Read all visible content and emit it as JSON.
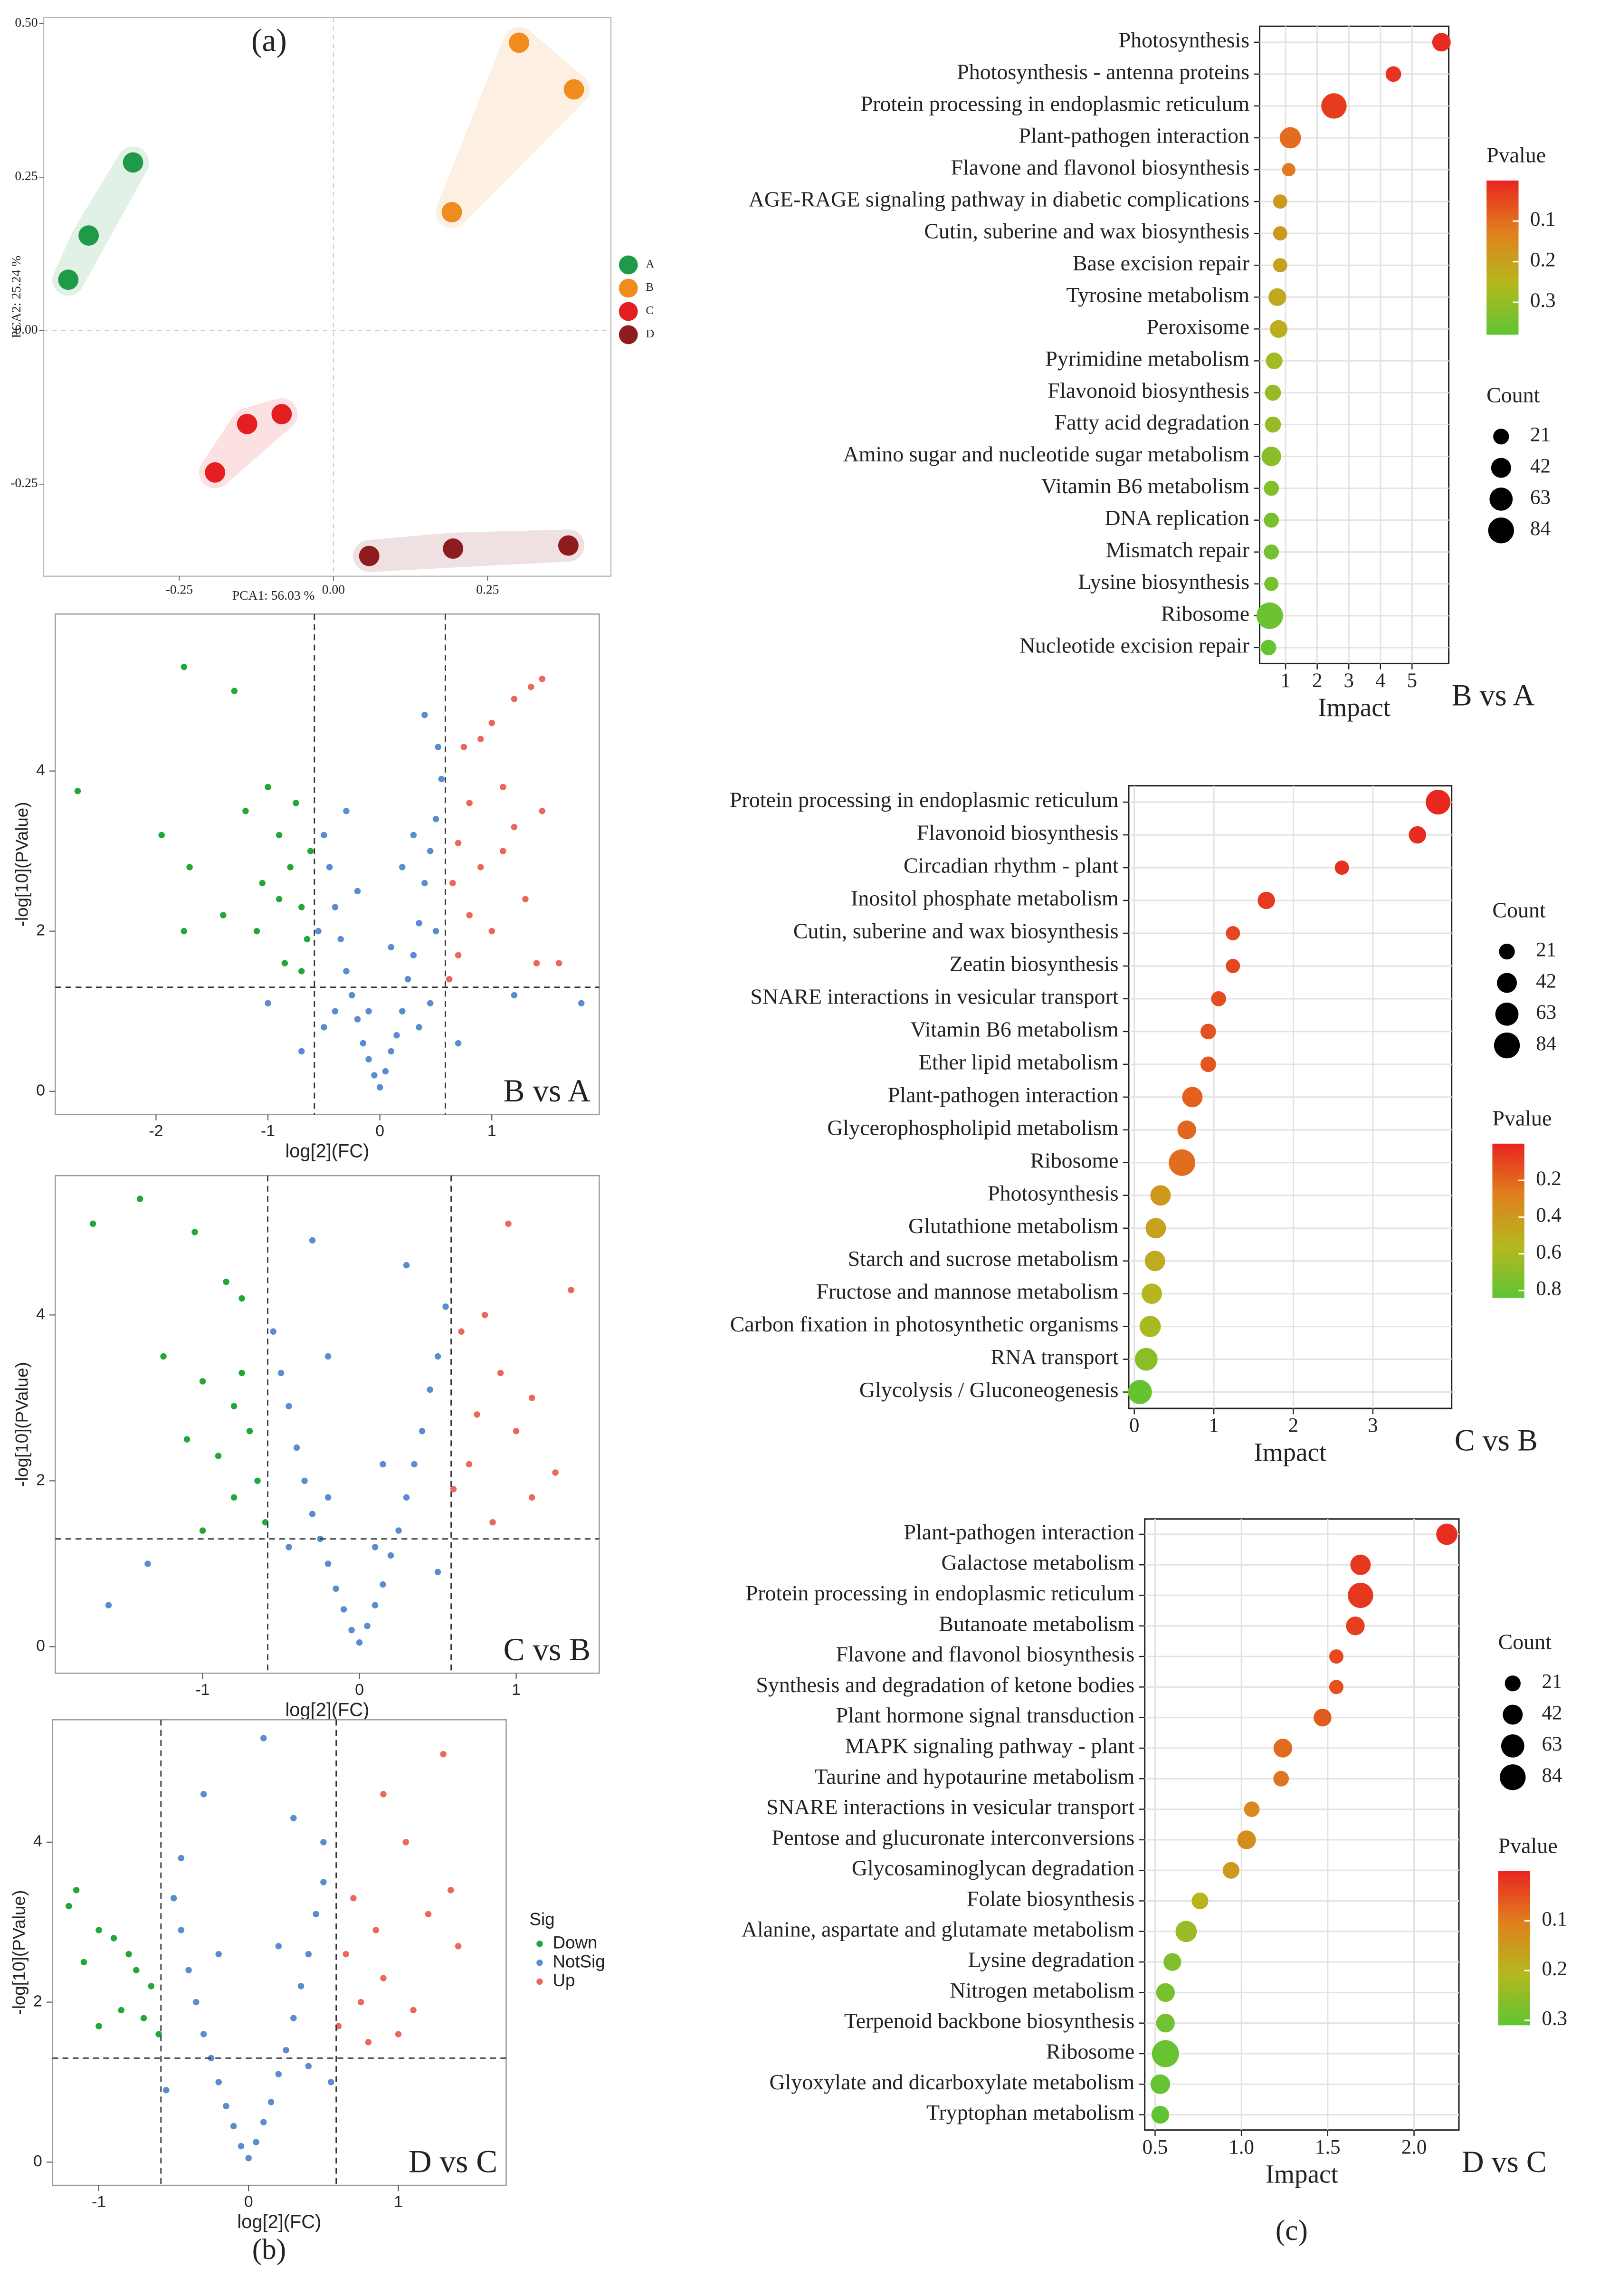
{
  "chart_data": [
    {
      "type": "scatter",
      "title": "(a)",
      "xlabel": "PCA1: 56.03 %",
      "ylabel": "PCA2: 25.24 %",
      "xlim": [
        -0.47,
        0.45
      ],
      "xticks": [
        -0.25,
        {
          "value": 0,
          "label": "0.00"
        },
        0.25
      ],
      "ylim": [
        -0.4,
        0.51
      ],
      "yticks": [
        -0.25,
        {
          "value": 0,
          "label": "0.00"
        },
        0.25,
        {
          "value": 0.5,
          "label": "0.50"
        }
      ],
      "series": [
        {
          "name": "A",
          "color": "#1f9a48",
          "x": [
            -0.325,
            -0.397,
            -0.43
          ],
          "values": [
            0.274,
            0.155,
            0.083
          ]
        },
        {
          "name": "B",
          "color": "#f08c1e",
          "x": [
            0.301,
            0.39,
            0.192
          ],
          "values": [
            0.469,
            0.393,
            0.193
          ]
        },
        {
          "name": "C",
          "color": "#e51f1f",
          "x": [
            -0.14,
            -0.084,
            -0.192
          ],
          "values": [
            -0.152,
            -0.136,
            -0.231
          ]
        },
        {
          "name": "D",
          "color": "#8e1b1e",
          "x": [
            0.058,
            0.194,
            0.381
          ],
          "values": [
            -0.367,
            -0.355,
            -0.35
          ]
        }
      ]
    },
    {
      "type": "volcano",
      "label": "B vs A",
      "xlabel": "log[2](FC)",
      "ylabel": "-log[10](PValue)",
      "xlim": [
        -2.9,
        1.96
      ],
      "xticks": [
        -2,
        -1,
        0,
        1
      ],
      "ylim": [
        -0.29,
        5.96
      ],
      "yticks": [
        0,
        2,
        4
      ],
      "vlines": [
        -0.585,
        0.585
      ],
      "hline": 1.3,
      "series": [
        {
          "name": "Down",
          "color": "#22a83a",
          "x": [
            -2.7,
            -1.75,
            -1.3,
            -1.95,
            -1.7,
            -1.75,
            -1.4,
            -1.2,
            -1.0,
            -0.9,
            -0.8,
            -0.7,
            -0.65,
            -1.05,
            -0.85,
            -0.7,
            -0.9,
            -1.1,
            -0.75,
            -0.62
          ],
          "values": [
            3.75,
            5.3,
            5.0,
            3.2,
            2.8,
            2.0,
            2.2,
            3.5,
            3.8,
            3.2,
            2.8,
            2.3,
            1.9,
            2.6,
            1.6,
            1.5,
            2.4,
            2.0,
            3.6,
            3.0
          ]
        },
        {
          "name": "NotSig",
          "color": "#5b8bd0",
          "x": [
            0,
            -0.05,
            0.05,
            -0.1,
            0.1,
            -0.15,
            0.15,
            -0.2,
            0.2,
            -0.25,
            0.25,
            -0.3,
            0.3,
            -0.35,
            0.35,
            -0.4,
            0.4,
            -0.45,
            0.45,
            -0.5,
            0.5,
            0.55,
            0.52,
            -0.3,
            0.1,
            -0.1,
            -0.55,
            0.5,
            -0.4,
            0.35,
            0.2,
            -0.2,
            0.3,
            -0.5,
            0.45,
            1.2,
            1.8,
            -0.7,
            0.7,
            -1.0,
            0.4
          ],
          "values": [
            0.05,
            0.2,
            0.25,
            0.4,
            0.5,
            0.6,
            0.7,
            0.9,
            1.0,
            1.2,
            1.4,
            1.5,
            1.7,
            1.9,
            2.1,
            2.3,
            2.6,
            2.8,
            3.0,
            3.2,
            3.4,
            3.9,
            4.3,
            3.5,
            1.8,
            1.0,
            2.0,
            2.0,
            1.0,
            0.8,
            2.8,
            2.5,
            3.2,
            0.8,
            1.1,
            1.2,
            1.1,
            0.5,
            0.6,
            1.1,
            4.7
          ]
        },
        {
          "name": "Up",
          "color": "#e8695c",
          "x": [
            1.45,
            1.35,
            1.2,
            1.0,
            0.9,
            0.75,
            1.1,
            0.8,
            1.2,
            1.45,
            0.7,
            0.9,
            1.3,
            0.65,
            0.8,
            1.6,
            1.4,
            0.7,
            1.0,
            0.62,
            1.1
          ],
          "values": [
            5.15,
            5.05,
            4.9,
            4.6,
            4.4,
            4.3,
            3.8,
            3.6,
            3.3,
            3.5,
            3.1,
            2.8,
            2.4,
            2.6,
            2.2,
            1.6,
            1.6,
            1.7,
            2.0,
            1.4,
            3.0
          ]
        }
      ]
    },
    {
      "type": "volcano",
      "label": "C vs B",
      "xlabel": "log[2](FC)",
      "ylabel": "-log[10](PValue)",
      "xlim": [
        -1.94,
        1.53
      ],
      "xticks": [
        -1,
        0,
        1
      ],
      "ylim": [
        -0.32,
        5.68
      ],
      "yticks": [
        0,
        2,
        4
      ],
      "vlines": [
        -0.585,
        0.585
      ],
      "hline": 1.3,
      "series": [
        {
          "name": "Down",
          "color": "#22a83a",
          "x": [
            -1.7,
            -1.4,
            -1.05,
            -0.85,
            -0.75,
            -1.25,
            -1.0,
            -0.8,
            -1.1,
            -0.9,
            -0.7,
            -0.65,
            -0.8,
            -0.6,
            -1.0,
            -0.75
          ],
          "values": [
            5.1,
            5.4,
            5.0,
            4.4,
            4.2,
            3.5,
            3.2,
            2.9,
            2.5,
            2.3,
            2.6,
            2.0,
            1.8,
            1.5,
            1.4,
            3.3
          ]
        },
        {
          "name": "NotSig",
          "color": "#5b8bd0",
          "x": [
            0,
            -0.05,
            0.05,
            -0.1,
            0.1,
            -0.15,
            0.15,
            -0.2,
            0.2,
            -0.25,
            0.25,
            -0.3,
            0.3,
            -0.35,
            0.35,
            -0.4,
            0.4,
            -0.45,
            0.45,
            -0.5,
            0.5,
            -0.3,
            0.3,
            -0.2,
            0.15,
            -0.45,
            0.5,
            -0.55,
            0.55,
            -1.35,
            -0.2,
            0.1,
            -1.6
          ],
          "values": [
            0.05,
            0.2,
            0.25,
            0.45,
            0.5,
            0.7,
            0.75,
            1.0,
            1.1,
            1.3,
            1.4,
            1.6,
            1.8,
            2.0,
            2.2,
            2.4,
            2.6,
            2.9,
            3.1,
            3.3,
            3.5,
            4.9,
            4.6,
            3.5,
            2.2,
            1.2,
            0.9,
            3.8,
            4.1,
            1.0,
            1.8,
            1.2,
            0.5
          ]
        },
        {
          "name": "Up",
          "color": "#e8695c",
          "x": [
            0.95,
            1.35,
            0.8,
            0.65,
            0.9,
            1.1,
            0.75,
            1.0,
            0.7,
            1.25,
            0.6,
            0.85,
            1.1
          ],
          "values": [
            5.1,
            4.3,
            4.0,
            3.8,
            3.3,
            3.0,
            2.8,
            2.6,
            2.2,
            2.1,
            1.9,
            1.5,
            1.8
          ]
        }
      ]
    },
    {
      "type": "volcano",
      "label": "D vs C",
      "xlabel": "log[2](FC)",
      "ylabel": "-log[10](PValue)",
      "caption": "(b)",
      "xlim": [
        -1.31,
        1.72
      ],
      "xticks": [
        -1,
        0,
        1
      ],
      "ylim": [
        -0.29,
        5.53
      ],
      "yticks": [
        0,
        2,
        4
      ],
      "vlines": [
        -0.585,
        0.585
      ],
      "hline": 1.3,
      "legend_title": "Sig",
      "series": [
        {
          "name": "Down",
          "color": "#22a83a",
          "x": [
            -1.15,
            -1.2,
            -1.0,
            -0.9,
            -0.8,
            -1.1,
            -0.65,
            -0.7,
            -0.85,
            -1.0,
            -0.6,
            -0.75
          ],
          "values": [
            3.4,
            3.2,
            2.9,
            2.8,
            2.6,
            2.5,
            2.2,
            1.8,
            1.9,
            1.7,
            1.6,
            2.4
          ]
        },
        {
          "name": "NotSig",
          "color": "#5b8bd0",
          "x": [
            0,
            -0.05,
            0.05,
            -0.1,
            0.1,
            -0.15,
            0.15,
            -0.2,
            0.2,
            -0.25,
            0.25,
            -0.3,
            0.3,
            -0.35,
            0.35,
            -0.4,
            0.4,
            -0.45,
            0.45,
            -0.5,
            0.5,
            0.1,
            -0.3,
            0.3,
            -0.45,
            0.5,
            0.4,
            -0.2,
            0.2,
            -0.55,
            0.55
          ],
          "values": [
            0.05,
            0.2,
            0.25,
            0.45,
            0.5,
            0.7,
            0.75,
            1.0,
            1.1,
            1.3,
            1.4,
            1.6,
            1.8,
            2.0,
            2.2,
            2.4,
            2.6,
            2.9,
            3.1,
            3.3,
            3.5,
            5.3,
            4.6,
            4.3,
            3.8,
            4.0,
            1.2,
            2.6,
            2.7,
            0.9,
            1.0
          ]
        },
        {
          "name": "Up",
          "color": "#e8695c",
          "x": [
            1.3,
            0.9,
            1.05,
            1.35,
            1.2,
            0.7,
            0.85,
            0.65,
            1.4,
            0.9,
            0.75,
            1.1,
            0.6,
            1.0,
            0.8
          ],
          "values": [
            5.1,
            4.6,
            4.0,
            3.4,
            3.1,
            3.3,
            2.9,
            2.6,
            2.7,
            2.3,
            2.0,
            1.9,
            1.7,
            1.6,
            1.5
          ]
        }
      ]
    },
    {
      "type": "bubble",
      "label": "B vs A",
      "xlabel": "Impact",
      "xlim": [
        0.18,
        6.16
      ],
      "xticks": [
        1,
        2,
        3,
        4,
        5
      ],
      "categories": [
        "Photosynthesis",
        "Photosynthesis - antenna proteins",
        "Protein processing in endoplasmic reticulum",
        "Plant-pathogen interaction",
        "Flavone and flavonol biosynthesis",
        "AGE-RAGE signaling pathway in diabetic complications",
        "Cutin, suberine and wax biosynthesis",
        "Base excision repair",
        "Tyrosine metabolism",
        "Peroxisome",
        "Pyrimidine metabolism",
        "Flavonoid biosynthesis",
        "Fatty acid degradation",
        "Amino sugar and nucleotide sugar metabolism",
        "Vitamin B6 metabolism",
        "DNA replication",
        "Mismatch repair",
        "Lysine biosynthesis",
        "Ribosome",
        "Nucleotide excision repair"
      ],
      "values": [
        5.93,
        4.41,
        2.53,
        1.15,
        1.1,
        0.83,
        0.83,
        0.83,
        0.74,
        0.78,
        0.64,
        0.6,
        0.6,
        0.55,
        0.55,
        0.55,
        0.55,
        0.55,
        0.5,
        0.46
      ],
      "pvalues": [
        0.01,
        0.02,
        0.03,
        0.1,
        0.12,
        0.18,
        0.18,
        0.2,
        0.22,
        0.23,
        0.28,
        0.3,
        0.3,
        0.32,
        0.33,
        0.34,
        0.35,
        0.35,
        0.36,
        0.37
      ],
      "counts": [
        34,
        20,
        80,
        50,
        12,
        15,
        15,
        15,
        30,
        30,
        25,
        22,
        22,
        40,
        18,
        18,
        18,
        15,
        90,
        20
      ],
      "color_legend_title": "Pvalue",
      "plim": [
        0,
        0.38
      ],
      "pticks": [
        0.1,
        0.2,
        0.3
      ],
      "size_legend_title": "Count",
      "size_ticks": [
        21,
        42,
        63,
        84
      ],
      "colors": [
        "#e8251f",
        "#e0801e",
        "#b5b81e",
        "#5fc434"
      ]
    },
    {
      "type": "bubble",
      "label": "C vs B",
      "xlabel": "Impact",
      "xlim": [
        -0.07,
        3.99
      ],
      "xticks": [
        0,
        1,
        2,
        3
      ],
      "categories": [
        "Protein processing in endoplasmic reticulum",
        "Flavonoid biosynthesis",
        "Circadian rhythm - plant",
        "Inositol phosphate metabolism",
        "Cutin, suberine and wax biosynthesis",
        "Zeatin biosynthesis",
        "SNARE interactions in vesicular transport",
        "Vitamin B6 metabolism",
        "Ether lipid metabolism",
        "Plant-pathogen interaction",
        "Glycerophospholipid metabolism",
        "Ribosome",
        "Photosynthesis",
        "Glutathione metabolism",
        "Starch and sucrose metabolism",
        "Fructose and mannose metabolism",
        "Carbon fixation in photosynthetic organisms",
        "RNA transport",
        "Glycolysis / Gluconeogenesis"
      ],
      "values": [
        3.82,
        3.56,
        2.61,
        1.66,
        1.24,
        1.24,
        1.06,
        0.93,
        0.93,
        0.73,
        0.66,
        0.6,
        0.33,
        0.27,
        0.26,
        0.22,
        0.2,
        0.15,
        0.07
      ],
      "pvalues": [
        0.01,
        0.02,
        0.03,
        0.06,
        0.1,
        0.1,
        0.12,
        0.14,
        0.15,
        0.18,
        0.2,
        0.22,
        0.4,
        0.45,
        0.5,
        0.55,
        0.6,
        0.7,
        0.82
      ],
      "counts": [
        75,
        28,
        15,
        28,
        15,
        15,
        18,
        20,
        20,
        45,
        35,
        90,
        45,
        45,
        45,
        45,
        50,
        60,
        70
      ],
      "color_legend_title": "Pvalue",
      "plim": [
        0,
        0.84
      ],
      "pticks": [
        0.2,
        0.4,
        0.6,
        0.8
      ],
      "size_legend_title": "Count",
      "size_ticks": [
        21,
        42,
        63,
        84
      ],
      "colors": [
        "#e8251f",
        "#e0801e",
        "#b5b81e",
        "#5fc434"
      ]
    },
    {
      "type": "bubble",
      "label": "D vs C",
      "xlabel": "Impact",
      "caption": "(c)",
      "xlim": [
        0.44,
        2.26
      ],
      "xticks": [
        0.5,
        {
          "value": 1,
          "label": "1.0"
        },
        1.5,
        {
          "value": 2,
          "label": "2.0"
        }
      ],
      "categories": [
        "Plant-pathogen interaction",
        "Galactose metabolism",
        "Protein processing in endoplasmic reticulum",
        "Butanoate metabolism",
        "Flavone and flavonol biosynthesis",
        "Synthesis and degradation of ketone bodies",
        "Plant hormone signal transduction",
        "MAPK signaling pathway - plant",
        "Taurine and hypotaurine metabolism",
        "SNARE interactions in vesicular transport",
        "Pentose and glucuronate interconversions",
        "Glycosaminoglycan degradation",
        "Folate biosynthesis",
        "Alanine, aspartate and glutamate metabolism",
        "Lysine degradation",
        "Nitrogen metabolism",
        "Terpenoid backbone biosynthesis",
        "Ribosome",
        "Glyoxylate and dicarboxylate metabolism",
        "Tryptophan metabolism"
      ],
      "values": [
        2.19,
        1.69,
        1.69,
        1.66,
        1.55,
        1.55,
        1.47,
        1.24,
        1.23,
        1.06,
        1.03,
        0.94,
        0.76,
        0.68,
        0.6,
        0.56,
        0.56,
        0.56,
        0.53,
        0.53
      ],
      "pvalues": [
        0.01,
        0.02,
        0.02,
        0.03,
        0.04,
        0.05,
        0.06,
        0.08,
        0.09,
        0.12,
        0.13,
        0.15,
        0.2,
        0.24,
        0.27,
        0.28,
        0.29,
        0.3,
        0.3,
        0.31
      ],
      "counts": [
        50,
        45,
        80,
        35,
        15,
        15,
        30,
        35,
        20,
        20,
        35,
        25,
        25,
        50,
        30,
        35,
        35,
        95,
        40,
        30
      ],
      "color_legend_title": "Pvalue",
      "plim": [
        0,
        0.31
      ],
      "pticks": [
        0.1,
        0.2,
        0.3
      ],
      "size_legend_title": "Count",
      "size_ticks": [
        21,
        42,
        63,
        84
      ],
      "colors": [
        "#e8251f",
        "#e0801e",
        "#b5b81e",
        "#5fc434"
      ]
    }
  ]
}
